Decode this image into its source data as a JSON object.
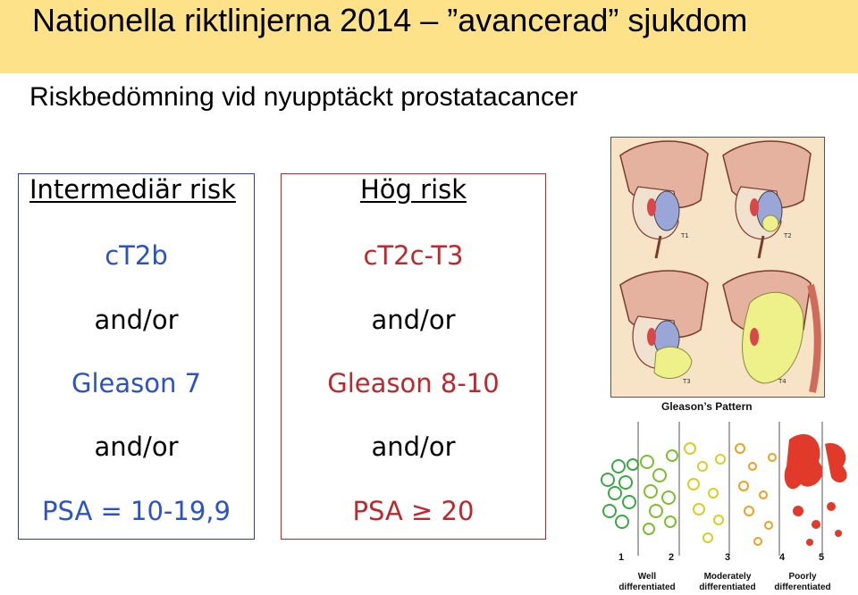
{
  "slide": {
    "title": "Nationella riktlinjerna 2014 – ”avancerad” sjukdom",
    "subtitle": "Riskbedömning vid nyupptäckt prostatacancer"
  },
  "intermediate": {
    "header": "Intermediär risk",
    "stage": "cT2b",
    "and1": "and/or",
    "gleason": "Gleason 7",
    "and2": "and/or",
    "psa": "PSA = 10-19,9"
  },
  "high": {
    "header": "Hög risk",
    "stage": "cT2c-T3",
    "and1": "and/or",
    "gleason": "Gleason 8-10",
    "and2": "and/or",
    "psa": "PSA ≥ 20"
  },
  "illustration": {
    "labels": [
      "T1",
      "T2",
      "T3",
      "T4"
    ]
  },
  "gleason_pattern": {
    "title": "Gleason’s Pattern",
    "numbers": [
      "1",
      "2",
      "3",
      "4",
      "5"
    ],
    "well": "Well differentiated",
    "moderately": "Moderately differentiated",
    "poorly": "Poorly differentiated"
  },
  "colors": {
    "title_bar": "#fde28a",
    "intermediate_border": "#2a3f9c",
    "high_border": "#c0272d",
    "blue_text": "#2b52c8",
    "red_text": "#c0272d"
  }
}
